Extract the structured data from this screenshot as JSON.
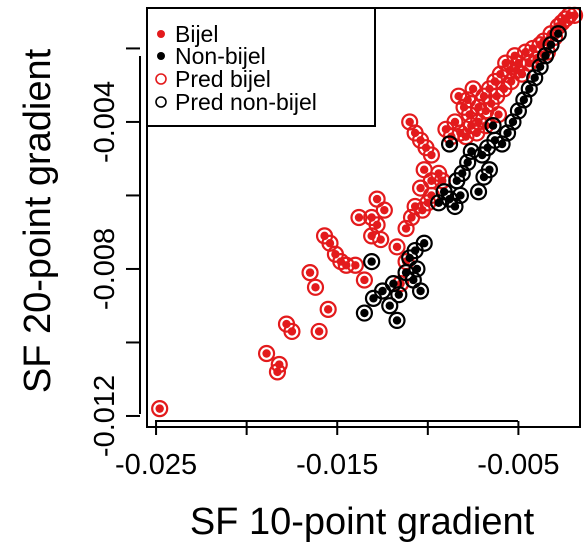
{
  "chart_data": {
    "type": "scatter",
    "xlabel": "SF 10-point gradient",
    "ylabel": "SF 20-point gradient",
    "xlim": [
      -0.0255,
      -0.0016
    ],
    "ylim": [
      -0.0123,
      -0.0009
    ],
    "x_ticks": [
      -0.025,
      -0.02,
      -0.015,
      -0.01,
      -0.005
    ],
    "x_tick_labels": [
      "-0.025",
      "",
      "-0.015",
      "",
      "-0.005"
    ],
    "y_ticks": [
      -0.012,
      -0.01,
      -0.008,
      -0.006,
      -0.004,
      -0.002
    ],
    "y_tick_labels": [
      "-0.012",
      "",
      "-0.008",
      "",
      "-0.004",
      ""
    ],
    "grid": false,
    "legend": {
      "position": "top-left",
      "entries": [
        {
          "label": "Bijel",
          "marker": "filled-dot",
          "color": "#e31a1c"
        },
        {
          "label": "Non-bijel",
          "marker": "filled-dot",
          "color": "#000000"
        },
        {
          "label": "Pred bijel",
          "marker": "open-circle",
          "color": "#e31a1c"
        },
        {
          "label": "Pred non-bijel",
          "marker": "open-circle",
          "color": "#000000"
        }
      ]
    },
    "series": [
      {
        "name": "Bijel",
        "color": "#e31a1c",
        "prediction": "Pred bijel",
        "points": [
          [
            -0.0248,
            -0.0118
          ],
          [
            -0.0189,
            -0.0103
          ],
          [
            -0.0182,
            -0.0106
          ],
          [
            -0.0183,
            -0.0108
          ],
          [
            -0.0178,
            -0.0095
          ],
          [
            -0.0175,
            -0.0097
          ],
          [
            -0.0165,
            -0.0081
          ],
          [
            -0.0162,
            -0.0085
          ],
          [
            -0.016,
            -0.0097
          ],
          [
            -0.0155,
            -0.0091
          ],
          [
            -0.0157,
            -0.0071
          ],
          [
            -0.0154,
            -0.0073
          ],
          [
            -0.0151,
            -0.0076
          ],
          [
            -0.0148,
            -0.0078
          ],
          [
            -0.0145,
            -0.0079
          ],
          [
            -0.014,
            -0.0079
          ],
          [
            -0.0135,
            -0.0083
          ],
          [
            -0.0138,
            -0.0066
          ],
          [
            -0.0131,
            -0.0066
          ],
          [
            -0.0128,
            -0.0068
          ],
          [
            -0.0131,
            -0.0071
          ],
          [
            -0.0126,
            -0.0072
          ],
          [
            -0.0128,
            -0.0061
          ],
          [
            -0.0124,
            -0.0064
          ],
          [
            -0.0115,
            -0.0084
          ],
          [
            -0.0112,
            -0.0078
          ],
          [
            -0.0117,
            -0.0074
          ],
          [
            -0.0112,
            -0.0069
          ],
          [
            -0.0109,
            -0.0066
          ],
          [
            -0.0107,
            -0.0063
          ],
          [
            -0.0104,
            -0.0058
          ],
          [
            -0.0103,
            -0.0064
          ],
          [
            -0.01,
            -0.0062
          ],
          [
            -0.0098,
            -0.0056
          ],
          [
            -0.0098,
            -0.006
          ],
          [
            -0.011,
            -0.004
          ],
          [
            -0.0107,
            -0.0043
          ],
          [
            -0.0104,
            -0.0045
          ],
          [
            -0.0101,
            -0.0047
          ],
          [
            -0.0098,
            -0.0049
          ],
          [
            -0.0102,
            -0.0053
          ],
          [
            -0.0094,
            -0.0054
          ],
          [
            -0.0092,
            -0.0056
          ],
          [
            -0.009,
            -0.0042
          ],
          [
            -0.0087,
            -0.0044
          ],
          [
            -0.0083,
            -0.0033
          ],
          [
            -0.008,
            -0.0036
          ],
          [
            -0.0077,
            -0.0038
          ],
          [
            -0.0085,
            -0.004
          ],
          [
            -0.0082,
            -0.0043
          ],
          [
            -0.0079,
            -0.0044
          ],
          [
            -0.0076,
            -0.0041
          ],
          [
            -0.0073,
            -0.0043
          ],
          [
            -0.0078,
            -0.0034
          ],
          [
            -0.0075,
            -0.0031
          ],
          [
            -0.0072,
            -0.0036
          ],
          [
            -0.0069,
            -0.0033
          ],
          [
            -0.0066,
            -0.0031
          ],
          [
            -0.0068,
            -0.0037
          ],
          [
            -0.0065,
            -0.0035
          ],
          [
            -0.0063,
            -0.0029
          ],
          [
            -0.006,
            -0.0027
          ],
          [
            -0.0062,
            -0.0033
          ],
          [
            -0.0058,
            -0.0031
          ],
          [
            -0.0057,
            -0.0024
          ],
          [
            -0.0055,
            -0.0026
          ],
          [
            -0.0054,
            -0.0029
          ],
          [
            -0.0052,
            -0.0022
          ],
          [
            -0.005,
            -0.0024
          ],
          [
            -0.0051,
            -0.0026
          ],
          [
            -0.0048,
            -0.0027
          ],
          [
            -0.0046,
            -0.0021
          ],
          [
            -0.0044,
            -0.0024
          ],
          [
            -0.0042,
            -0.002
          ],
          [
            -0.004,
            -0.0023
          ],
          [
            -0.0038,
            -0.0019
          ],
          [
            -0.0036,
            -0.0018
          ],
          [
            -0.0034,
            -0.0021
          ],
          [
            -0.0032,
            -0.0016
          ],
          [
            -0.003,
            -0.0017
          ],
          [
            -0.0028,
            -0.0014
          ],
          [
            -0.0026,
            -0.0013
          ],
          [
            -0.0024,
            -0.0012
          ],
          [
            -0.0022,
            -0.0011
          ],
          [
            -0.0019,
            -0.0011
          ],
          [
            -0.0072,
            -0.004
          ],
          [
            -0.0068,
            -0.0041
          ],
          [
            -0.0061,
            -0.0038
          ]
        ]
      },
      {
        "name": "Non-bijel",
        "color": "#000000",
        "prediction": "Pred non-bijel",
        "points": [
          [
            -0.0135,
            -0.0092
          ],
          [
            -0.0117,
            -0.0094
          ],
          [
            -0.013,
            -0.0088
          ],
          [
            -0.0125,
            -0.0086
          ],
          [
            -0.0121,
            -0.009
          ],
          [
            -0.0119,
            -0.0084
          ],
          [
            -0.0116,
            -0.0087
          ],
          [
            -0.0131,
            -0.0078
          ],
          [
            -0.0112,
            -0.0081
          ],
          [
            -0.0108,
            -0.0083
          ],
          [
            -0.0106,
            -0.008
          ],
          [
            -0.0104,
            -0.0086
          ],
          [
            -0.011,
            -0.0077
          ],
          [
            -0.0107,
            -0.0075
          ],
          [
            -0.0102,
            -0.0073
          ],
          [
            -0.0094,
            -0.0062
          ],
          [
            -0.0091,
            -0.0059
          ],
          [
            -0.0088,
            -0.0061
          ],
          [
            -0.0085,
            -0.0063
          ],
          [
            -0.0082,
            -0.006
          ],
          [
            -0.0084,
            -0.0056
          ],
          [
            -0.0081,
            -0.0054
          ],
          [
            -0.0078,
            -0.0051
          ],
          [
            -0.0072,
            -0.0059
          ],
          [
            -0.0069,
            -0.0055
          ],
          [
            -0.0066,
            -0.0053
          ],
          [
            -0.007,
            -0.0049
          ],
          [
            -0.0067,
            -0.0047
          ],
          [
            -0.0063,
            -0.0045
          ],
          [
            -0.0059,
            -0.0046
          ],
          [
            -0.0056,
            -0.0043
          ],
          [
            -0.0053,
            -0.004
          ],
          [
            -0.005,
            -0.0037
          ],
          [
            -0.0047,
            -0.0034
          ],
          [
            -0.0044,
            -0.0031
          ],
          [
            -0.0041,
            -0.0028
          ],
          [
            -0.0038,
            -0.0025
          ],
          [
            -0.0035,
            -0.0022
          ],
          [
            -0.0032,
            -0.0019
          ],
          [
            -0.0028,
            -0.0016
          ],
          [
            -0.0088,
            -0.0046
          ],
          [
            -0.0076,
            -0.0048
          ],
          [
            -0.0064,
            -0.0041
          ]
        ]
      }
    ]
  }
}
